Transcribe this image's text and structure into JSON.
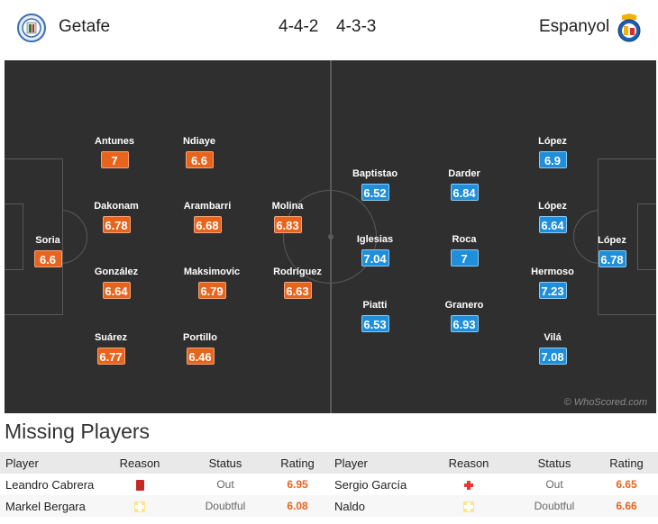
{
  "header": {
    "home_team": "Getafe",
    "away_team": "Espanyol",
    "home_formation": "4-4-2",
    "away_formation": "4-3-3",
    "home_crest_icon": "getafe-crest-icon",
    "away_crest_icon": "espanyol-crest-icon"
  },
  "pitch": {
    "watermark": "© WhoScored.com",
    "home_players": [
      {
        "name": "Soria",
        "rating": "6.6"
      },
      {
        "name": "Antunes",
        "rating": "7"
      },
      {
        "name": "Dakonam",
        "rating": "6.78"
      },
      {
        "name": "González",
        "rating": "6.64"
      },
      {
        "name": "Suárez",
        "rating": "6.77"
      },
      {
        "name": "Ndiaye",
        "rating": "6.6"
      },
      {
        "name": "Arambarri",
        "rating": "6.68"
      },
      {
        "name": "Maksimovic",
        "rating": "6.79"
      },
      {
        "name": "Portillo",
        "rating": "6.46"
      },
      {
        "name": "Molina",
        "rating": "6.83"
      },
      {
        "name": "Rodríguez",
        "rating": "6.63"
      }
    ],
    "away_players": [
      {
        "name": "López",
        "rating": "6.78"
      },
      {
        "name": "López",
        "rating": "6.9"
      },
      {
        "name": "López",
        "rating": "6.64"
      },
      {
        "name": "Hermoso",
        "rating": "7.23"
      },
      {
        "name": "Vilá",
        "rating": "7.08"
      },
      {
        "name": "Darder",
        "rating": "6.84"
      },
      {
        "name": "Roca",
        "rating": "7"
      },
      {
        "name": "Granero",
        "rating": "6.93"
      },
      {
        "name": "Baptistao",
        "rating": "6.52"
      },
      {
        "name": "Iglesias",
        "rating": "7.04"
      },
      {
        "name": "Piatti",
        "rating": "6.53"
      }
    ],
    "colors": {
      "home": "#e8641d",
      "away": "#1f8fdc",
      "pitch": "#2f2f2f"
    }
  },
  "missing": {
    "title": "Missing Players",
    "headers": {
      "player": "Player",
      "reason": "Reason",
      "status": "Status",
      "rating": "Rating"
    },
    "home": [
      {
        "player": "Leandro Cabrera",
        "reason_icon": "red-card-icon",
        "status": "Out",
        "rating": "6.95"
      },
      {
        "player": "Markel Bergara",
        "reason_icon": "doubtful-icon",
        "status": "Doubtful",
        "rating": "6.08"
      }
    ],
    "away": [
      {
        "player": "Sergio García",
        "reason_icon": "injury-icon",
        "status": "Out",
        "rating": "6.65"
      },
      {
        "player": "Naldo",
        "reason_icon": "doubtful-icon",
        "status": "Doubtful",
        "rating": "6.66"
      }
    ]
  }
}
